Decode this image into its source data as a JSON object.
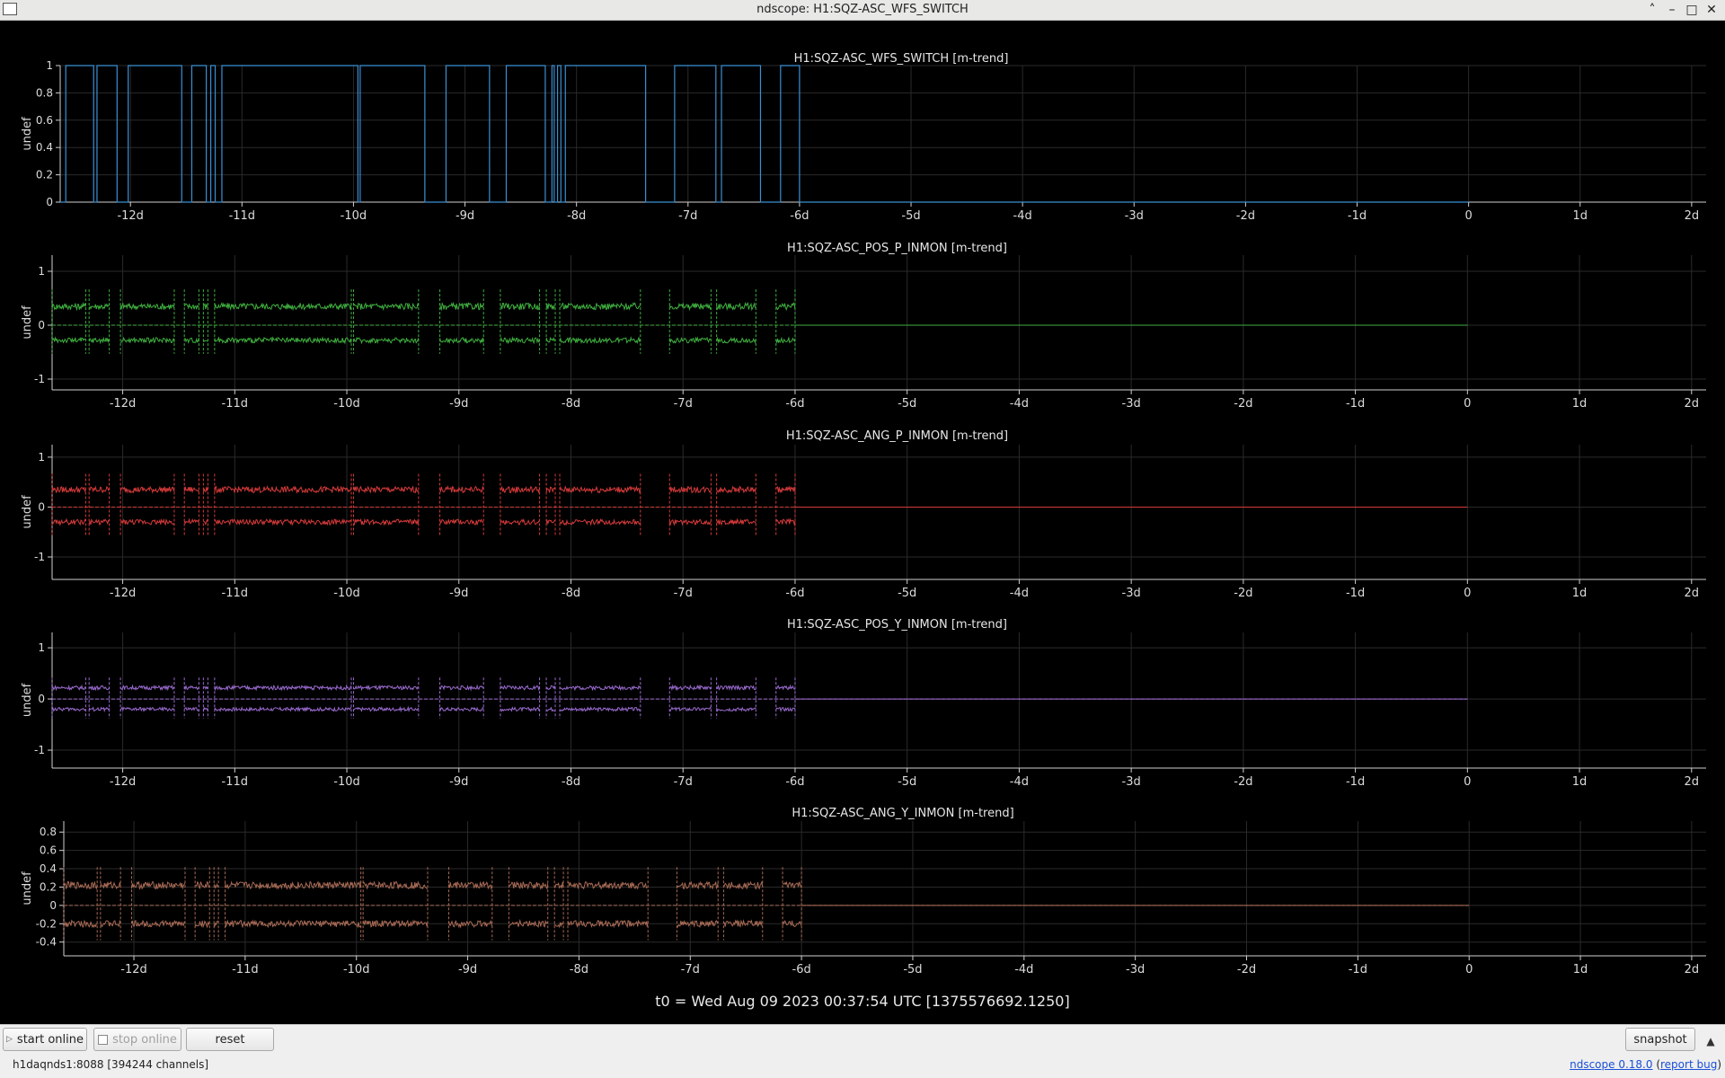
{
  "window": {
    "title": "ndscope: H1:SQZ-ASC_WFS_SWITCH"
  },
  "t0_label": "t0 = Wed Aug 09 2023 00:37:54 UTC [1375576692.1250]",
  "toolbar": {
    "start_online": "start online",
    "stop_online": "stop online",
    "reset": "reset",
    "snapshot": "snapshot"
  },
  "status": {
    "server": "h1daqnds1:8088  [394244 channels]",
    "version": "ndscope 0.18.0",
    "report": "report bug"
  },
  "colors": {
    "background": "#000000",
    "axis": "#cfcfcf",
    "grid": "#2a2a2a"
  },
  "chart_data": [
    {
      "type": "line",
      "title": "H1:SQZ-ASC_WFS_SWITCH [m-trend]",
      "ylabel": "undef",
      "color": "#3b8fd4",
      "xlim": [
        -12.63,
        2.13
      ],
      "ylim": [
        0,
        1
      ],
      "yticks": [
        0,
        0.2,
        0.4,
        0.6,
        0.8,
        1
      ],
      "ytick_labels": [
        "0",
        "0.2",
        "0.4",
        "0.6",
        "0.8",
        "1"
      ],
      "xticks": [
        -12,
        -11,
        -10,
        -9,
        -8,
        -7,
        -6,
        -5,
        -4,
        -3,
        -2,
        -1,
        0,
        1,
        2
      ],
      "xtick_labels": [
        "-12d",
        "-11d",
        "-10d",
        "-9d",
        "-8d",
        "-7d",
        "-6d",
        "-5d",
        "-4d",
        "-3d",
        "-2d",
        "-1d",
        "0",
        "1d",
        "2d"
      ],
      "data_end": 0,
      "on_intervals": [
        [
          -12.58,
          -12.33
        ],
        [
          -12.3,
          -12.12
        ],
        [
          -12.02,
          -11.54
        ],
        [
          -11.45,
          -11.32
        ],
        [
          -11.28,
          -11.24
        ],
        [
          -11.18,
          -9.96
        ],
        [
          -9.94,
          -9.36
        ],
        [
          -9.17,
          -8.78
        ],
        [
          -8.63,
          -8.28
        ],
        [
          -8.22,
          -8.2
        ],
        [
          -8.17,
          -8.14
        ],
        [
          -8.1,
          -7.38
        ],
        [
          -7.12,
          -6.75
        ],
        [
          -6.7,
          -6.35
        ],
        [
          -6.17,
          -6.0
        ]
      ]
    },
    {
      "type": "line",
      "title": "H1:SQZ-ASC_POS_P_INMON [m-trend]",
      "ylabel": "undef",
      "color": "#3fae3f",
      "xlim": [
        -12.63,
        2.13
      ],
      "ylim": [
        -1.2,
        1.3
      ],
      "yticks": [
        -1,
        0,
        1
      ],
      "ytick_labels": [
        "-1",
        "0",
        "1"
      ],
      "xticks": [
        -12,
        -11,
        -10,
        -9,
        -8,
        -7,
        -6,
        -5,
        -4,
        -3,
        -2,
        -1,
        0,
        1,
        2
      ],
      "xtick_labels": [
        "-12d",
        "-11d",
        "-10d",
        "-9d",
        "-8d",
        "-7d",
        "-6d",
        "-5d",
        "-4d",
        "-3d",
        "-2d",
        "-1d",
        "0",
        "1d",
        "2d"
      ],
      "data_end": 0,
      "active_end": -6.0,
      "band": {
        "upper": 0.35,
        "lower": -0.28
      }
    },
    {
      "type": "line",
      "title": "H1:SQZ-ASC_ANG_P_INMON [m-trend]",
      "ylabel": "undef",
      "color": "#d63a3a",
      "xlim": [
        -12.63,
        2.13
      ],
      "ylim": [
        -1.45,
        1.25
      ],
      "yticks": [
        -1,
        0,
        1
      ],
      "ytick_labels": [
        "-1",
        "0",
        "1"
      ],
      "xticks": [
        -12,
        -11,
        -10,
        -9,
        -8,
        -7,
        -6,
        -5,
        -4,
        -3,
        -2,
        -1,
        0,
        1,
        2
      ],
      "xtick_labels": [
        "-12d",
        "-11d",
        "-10d",
        "-9d",
        "-8d",
        "-7d",
        "-6d",
        "-5d",
        "-4d",
        "-3d",
        "-2d",
        "-1d",
        "0",
        "1d",
        "2d"
      ],
      "data_end": 0,
      "active_end": -6.0,
      "band": {
        "upper": 0.35,
        "lower": -0.3
      }
    },
    {
      "type": "line",
      "title": "H1:SQZ-ASC_POS_Y_INMON [m-trend]",
      "ylabel": "undef",
      "color": "#9a6bd0",
      "xlim": [
        -12.63,
        2.13
      ],
      "ylim": [
        -1.35,
        1.3
      ],
      "yticks": [
        -1,
        0,
        1
      ],
      "ytick_labels": [
        "-1",
        "0",
        "1"
      ],
      "xticks": [
        -12,
        -11,
        -10,
        -9,
        -8,
        -7,
        -6,
        -5,
        -4,
        -3,
        -2,
        -1,
        0,
        1,
        2
      ],
      "xtick_labels": [
        "-12d",
        "-11d",
        "-10d",
        "-9d",
        "-8d",
        "-7d",
        "-6d",
        "-5d",
        "-4d",
        "-3d",
        "-2d",
        "-1d",
        "0",
        "1d",
        "2d"
      ],
      "data_end": 0,
      "active_end": -6.0,
      "band": {
        "upper": 0.22,
        "lower": -0.2
      }
    },
    {
      "type": "line",
      "title": "H1:SQZ-ASC_ANG_Y_INMON [m-trend]",
      "ylabel": "undef",
      "color": "#a86a55",
      "xlim": [
        -12.63,
        2.13
      ],
      "ylim": [
        -0.55,
        0.92
      ],
      "yticks": [
        -0.4,
        -0.2,
        0,
        0.2,
        0.4,
        0.6,
        0.8
      ],
      "ytick_labels": [
        "-0.4",
        "-0.2",
        "0",
        "0.2",
        "0.4",
        "0.6",
        "0.8"
      ],
      "xticks": [
        -12,
        -11,
        -10,
        -9,
        -8,
        -7,
        -6,
        -5,
        -4,
        -3,
        -2,
        -1,
        0,
        1,
        2
      ],
      "xtick_labels": [
        "-12d",
        "-11d",
        "-10d",
        "-9d",
        "-8d",
        "-7d",
        "-6d",
        "-5d",
        "-4d",
        "-3d",
        "-2d",
        "-1d",
        "0",
        "1d",
        "2d"
      ],
      "data_end": 0,
      "active_end": -6.0,
      "band": {
        "upper": 0.22,
        "lower": -0.2
      }
    }
  ]
}
